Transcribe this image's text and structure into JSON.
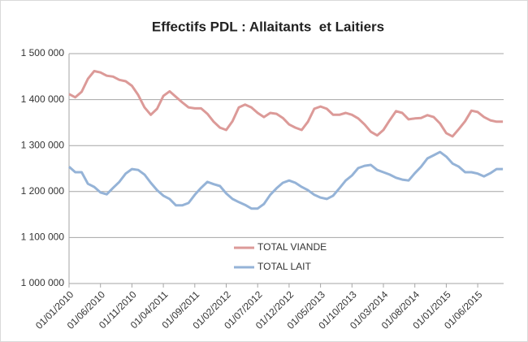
{
  "chart_data": {
    "type": "line",
    "title": "Effectifs PDL : Allaitants  et Laitiers",
    "categories": [
      "01/01/2010",
      null,
      null,
      null,
      null,
      "01/06/2010",
      null,
      null,
      null,
      null,
      "01/11/2010",
      null,
      null,
      null,
      null,
      "01/04/2011",
      null,
      null,
      null,
      null,
      "01/09/2011",
      null,
      null,
      null,
      null,
      "01/02/2012",
      null,
      null,
      null,
      null,
      "01/07/2012",
      null,
      null,
      null,
      null,
      "01/12/2012",
      null,
      null,
      null,
      null,
      "01/05/2013",
      null,
      null,
      null,
      null,
      "01/10/2013",
      null,
      null,
      null,
      null,
      "01/03/2014",
      null,
      null,
      null,
      null,
      "01/08/2014",
      null,
      null,
      null,
      null,
      "01/01/2015",
      null,
      null,
      null,
      null,
      "01/06/2015",
      null,
      null,
      null,
      null
    ],
    "series": [
      {
        "name": "TOTAL VIANDE",
        "color": "#dc9a98",
        "values": [
          1412000,
          1405000,
          1417000,
          1445000,
          1462000,
          1459000,
          1452000,
          1450000,
          1443000,
          1440000,
          1430000,
          1410000,
          1383000,
          1367000,
          1380000,
          1408000,
          1418000,
          1406000,
          1394000,
          1383000,
          1381000,
          1381000,
          1369000,
          1352000,
          1339000,
          1334000,
          1353000,
          1383000,
          1389000,
          1383000,
          1371000,
          1362000,
          1371000,
          1369000,
          1360000,
          1346000,
          1339000,
          1334000,
          1352000,
          1380000,
          1385000,
          1380000,
          1367000,
          1367000,
          1371000,
          1367000,
          1359000,
          1346000,
          1330000,
          1322000,
          1334000,
          1355000,
          1375000,
          1371000,
          1357000,
          1359000,
          1360000,
          1366000,
          1362000,
          1348000,
          1327000,
          1320000,
          1336000,
          1353000,
          1376000,
          1373000,
          1362000,
          1355000,
          1352000,
          1352000
        ]
      },
      {
        "name": "TOTAL LAIT",
        "color": "#95b3d7",
        "values": [
          1254000,
          1242000,
          1242000,
          1217000,
          1210000,
          1198000,
          1194000,
          1208000,
          1221000,
          1239000,
          1249000,
          1247000,
          1237000,
          1219000,
          1203000,
          1191000,
          1184000,
          1170000,
          1170000,
          1175000,
          1193000,
          1208000,
          1221000,
          1216000,
          1212000,
          1196000,
          1184000,
          1177000,
          1171000,
          1163000,
          1163000,
          1173000,
          1193000,
          1207000,
          1219000,
          1224000,
          1219000,
          1210000,
          1203000,
          1193000,
          1187000,
          1184000,
          1191000,
          1207000,
          1224000,
          1235000,
          1251000,
          1256000,
          1258000,
          1247000,
          1242000,
          1237000,
          1230000,
          1226000,
          1224000,
          1240000,
          1254000,
          1272000,
          1279000,
          1286000,
          1276000,
          1261000,
          1254000,
          1242000,
          1242000,
          1239000,
          1233000,
          1240000,
          1249000,
          1249000
        ]
      }
    ],
    "ylim": [
      1000000,
      1500000
    ],
    "yticks": [
      {
        "value": 1000000,
        "label": "1 000 000"
      },
      {
        "value": 1100000,
        "label": "1 100 000"
      },
      {
        "value": 1200000,
        "label": "1 200 000"
      },
      {
        "value": 1300000,
        "label": "1 300 000"
      },
      {
        "value": 1400000,
        "label": "1 400 000"
      },
      {
        "value": 1500000,
        "label": "1 500 000"
      }
    ],
    "grid": true
  }
}
